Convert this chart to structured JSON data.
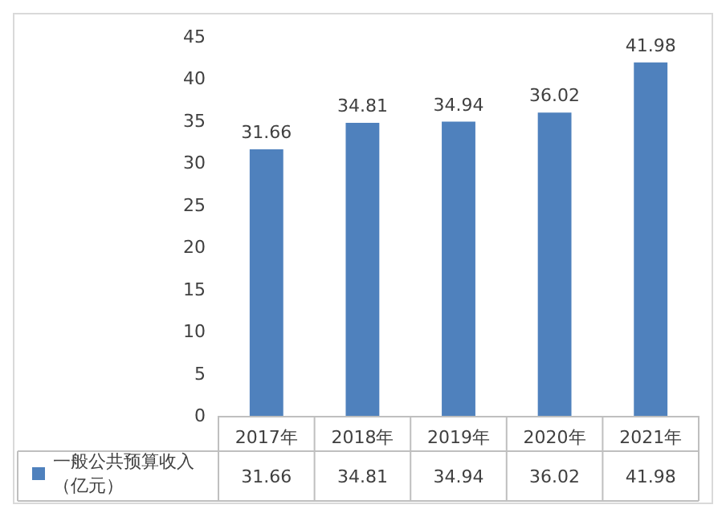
{
  "chart_data": {
    "type": "bar",
    "categories": [
      "2017年",
      "2018年",
      "2019年",
      "2020年",
      "2021年"
    ],
    "series": [
      {
        "name": "一般公共预算收入（亿元）",
        "color": "#4f81bd",
        "values": [
          31.66,
          34.81,
          34.94,
          36.02,
          41.98
        ]
      }
    ],
    "ylim": [
      0,
      45
    ],
    "yticks": [
      0,
      5,
      10,
      15,
      20,
      25,
      30,
      35,
      40,
      45
    ],
    "grid": false,
    "legend": "bottom left",
    "data_labels": true,
    "annotations": [
      "31.66",
      "34.81",
      "34.94",
      "36.02",
      "41.98"
    ]
  }
}
